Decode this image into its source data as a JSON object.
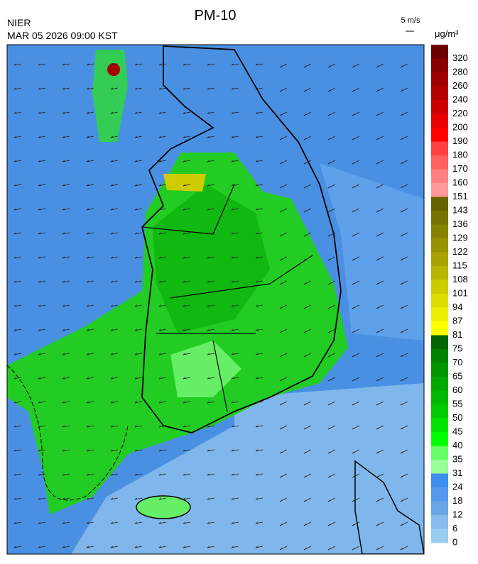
{
  "header": {
    "title": "PM-10",
    "agency": "NIER",
    "datetime": "MAR 05 2026 09:00 KST",
    "wind_scale": "5 m/s",
    "unit": "μg/m³"
  },
  "colorbar": {
    "labels": [
      "320",
      "280",
      "260",
      "240",
      "220",
      "200",
      "190",
      "180",
      "170",
      "160",
      "151",
      "143",
      "136",
      "129",
      "122",
      "115",
      "108",
      "101",
      "94",
      "87",
      "81",
      "75",
      "70",
      "65",
      "60",
      "55",
      "50",
      "45",
      "40",
      "35",
      "31",
      "24",
      "18",
      "12",
      "6",
      "0"
    ],
    "colors": [
      "#6b0000",
      "#8b0000",
      "#a00000",
      "#b40000",
      "#cc0000",
      "#e60000",
      "#ff0000",
      "#ff4040",
      "#ff6060",
      "#ff8080",
      "#ff9999",
      "#666200",
      "#777300",
      "#878300",
      "#979300",
      "#a8a300",
      "#b8b400",
      "#cccc00",
      "#dddd00",
      "#eeee00",
      "#ffff00",
      "#006600",
      "#008400",
      "#009600",
      "#00a800",
      "#00b800",
      "#00cc00",
      "#00e400",
      "#00ff00",
      "#66ff66",
      "#99ff99",
      "#3d8ef0",
      "#5599ee",
      "#6aa6e6",
      "#88bbee",
      "#99ccee"
    ]
  }
}
